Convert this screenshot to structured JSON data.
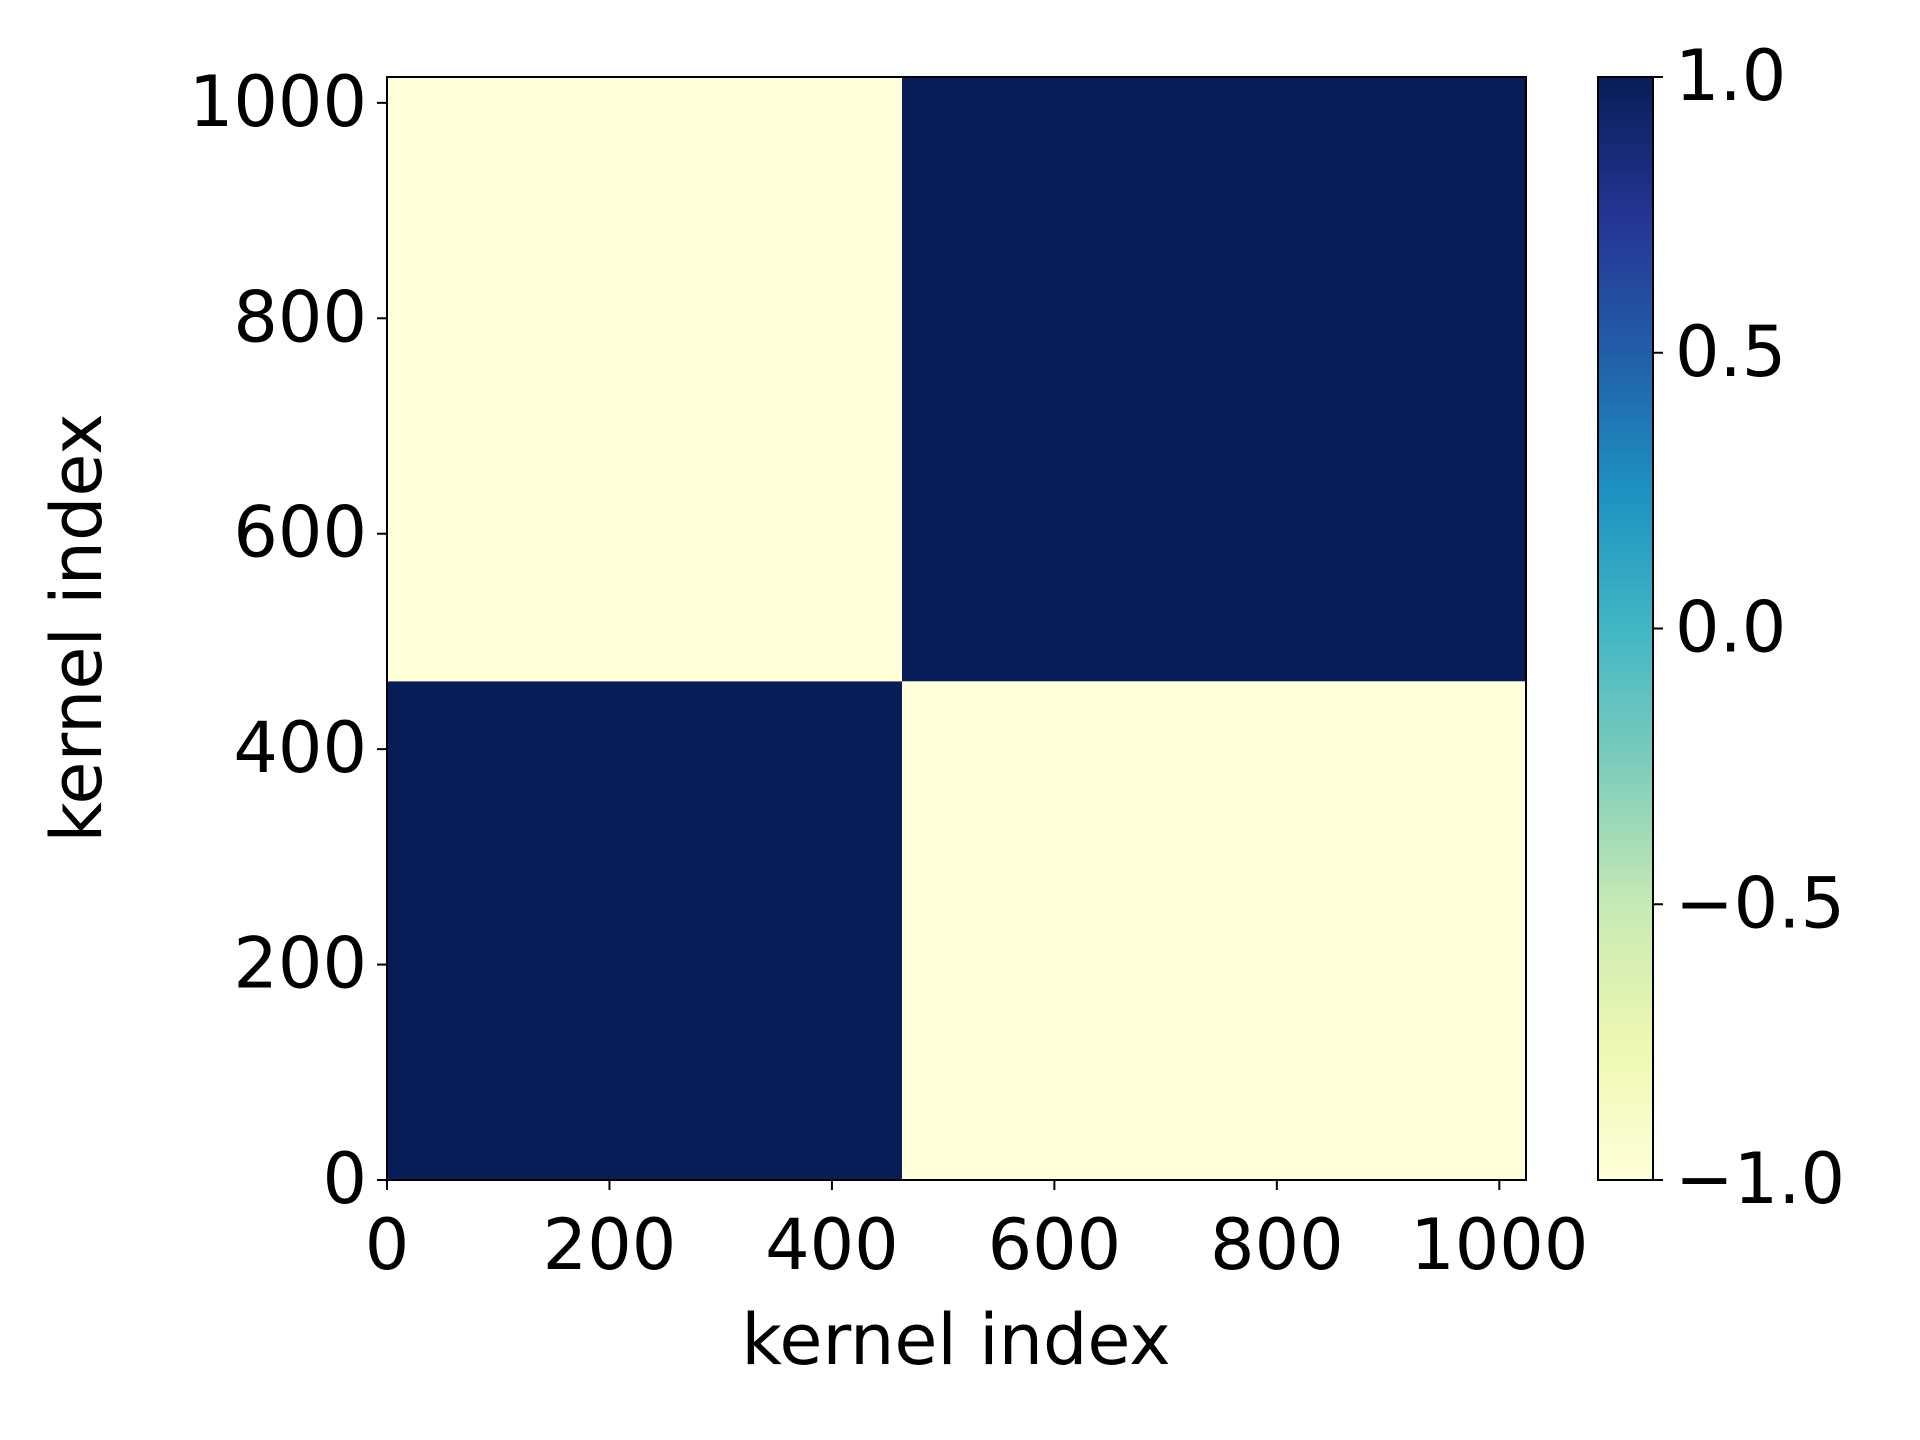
{
  "chart_data": {
    "type": "heatmap",
    "xlabel": "kernel index",
    "ylabel": "kernel index",
    "x_edges": [
      0,
      463,
      1024
    ],
    "y_edges": [
      0,
      463,
      1024
    ],
    "values": [
      [
        1,
        -1
      ],
      [
        -1,
        1
      ]
    ],
    "xlim": [
      0,
      1024
    ],
    "ylim": [
      0,
      1024
    ],
    "xticks": [
      0,
      200,
      400,
      600,
      800,
      1000
    ],
    "yticks": [
      0,
      200,
      400,
      600,
      800,
      1000
    ],
    "colorbar": {
      "lim": [
        -1,
        1
      ],
      "ticks": [
        {
          "value": -1,
          "label": "−1.0"
        },
        {
          "value": -0.5,
          "label": "−0.5"
        },
        {
          "value": 0,
          "label": "0.0"
        },
        0.5,
        {
          "value": 1,
          "label": "1.0"
        }
      ],
      "colormap": [
        "#ffffd9",
        "#edf8b1",
        "#c7e9b4",
        "#7fcdbb",
        "#41b6c4",
        "#1d91c0",
        "#225ea8",
        "#253494",
        "#081d58"
      ]
    }
  }
}
